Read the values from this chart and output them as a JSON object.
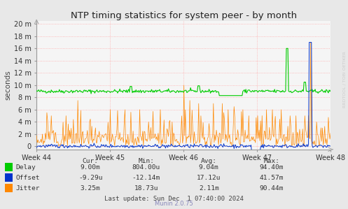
{
  "title": "NTP timing statistics for system peer - by month",
  "ylabel": "seconds",
  "background_color": "#e8e8e8",
  "plot_bg_color": "#f5f5f5",
  "grid_color": "#ffaaaa",
  "ytick_labels": [
    "0",
    "2 m",
    "4 m",
    "6 m",
    "8 m",
    "10 m",
    "12 m",
    "14 m",
    "16 m",
    "18 m",
    "20 m"
  ],
  "ytick_values": [
    0,
    0.002,
    0.004,
    0.006,
    0.008,
    0.01,
    0.012,
    0.014,
    0.016,
    0.018,
    0.02
  ],
  "ylim": [
    -0.0005,
    0.0205
  ],
  "xticklabels": [
    "Week 44",
    "Week 45",
    "Week 46",
    "Week 47",
    "Week 48"
  ],
  "delay_color": "#00cc00",
  "offset_color": "#0033cc",
  "jitter_color": "#ff8800",
  "legend_items": [
    {
      "label": "Delay",
      "color": "#00cc00"
    },
    {
      "label": "Offset",
      "color": "#0033cc"
    },
    {
      "label": "Jitter",
      "color": "#ff8800"
    }
  ],
  "stats_headers": [
    "Cur:",
    "Min:",
    "Avg:",
    "Max:"
  ],
  "stats_rows": [
    {
      "name": "Delay",
      "values": [
        "9.00m",
        "804.00u",
        "9.04m",
        "94.40m"
      ]
    },
    {
      "name": "Offset",
      "values": [
        "-9.29u",
        "-12.14m",
        "17.12u",
        "41.57m"
      ]
    },
    {
      "name": "Jitter",
      "values": [
        "3.25m",
        "18.73u",
        "2.11m",
        "90.44m"
      ]
    }
  ],
  "last_update": "Last update: Sun Dec  1 07:40:00 2024",
  "watermark": "RRDTOOL / TOBI OETIKER",
  "munin_version": "Munin 2.0.75",
  "n_points": 400
}
